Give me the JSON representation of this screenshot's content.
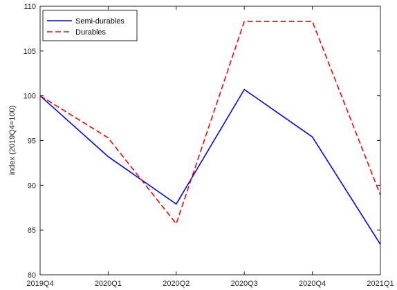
{
  "chart_data": {
    "type": "line",
    "title": "",
    "xlabel": "",
    "ylabel": "index (2019Q4=100)",
    "categories": [
      "2019Q4",
      "2020Q1",
      "2020Q2",
      "2020Q3",
      "2020Q4",
      "2021Q1"
    ],
    "ylim": [
      80,
      110
    ],
    "yticks": [
      80,
      85,
      90,
      95,
      100,
      105,
      110
    ],
    "grid": false,
    "legend_position": "top-left",
    "series": [
      {
        "name": "Semi-durables",
        "values": [
          100,
          93.2,
          87.9,
          100.7,
          95.4,
          83.4
        ],
        "color": "#0000ff",
        "line_style": "solid"
      },
      {
        "name": "Durables",
        "values": [
          100,
          95.3,
          85.7,
          108.3,
          108.3,
          88.9
        ],
        "color": "#ff0000",
        "line_style": "dashed"
      }
    ]
  }
}
